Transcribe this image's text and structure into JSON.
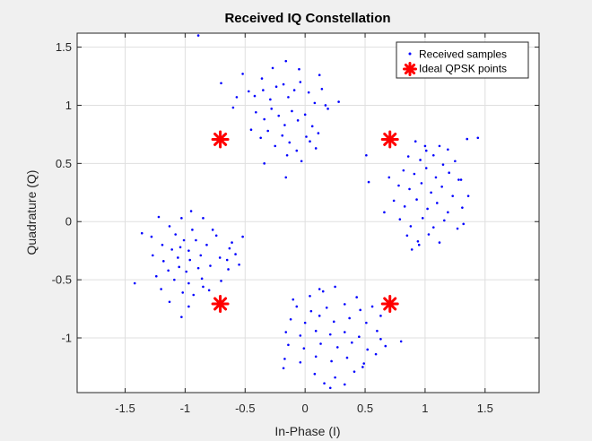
{
  "chart_data": {
    "type": "scatter",
    "title": "Received IQ Constellation",
    "xlabel": "In-Phase (I)",
    "ylabel": "Quadrature (Q)",
    "xlim": [
      -1.9,
      1.95
    ],
    "ylim": [
      -1.47,
      1.62
    ],
    "xticks": [
      -1.5,
      -1,
      -0.5,
      0,
      0.5,
      1,
      1.5
    ],
    "xtick_labels": [
      "-1.5",
      "-1",
      "-0.5",
      "0",
      "0.5",
      "1",
      "1.5"
    ],
    "yticks": [
      -1,
      -0.5,
      0,
      0.5,
      1,
      1.5
    ],
    "ytick_labels": [
      "-1",
      "-0.5",
      "0",
      "0.5",
      "1",
      "1.5"
    ],
    "grid": true,
    "legend_position": "top-right",
    "background": "#f0f0f0",
    "plot_background": "#ffffff",
    "series": [
      {
        "name": "Received samples",
        "color": "#0000ff",
        "marker": "dot",
        "points": [
          [
            -0.89,
            1.6
          ],
          [
            -0.16,
            1.38
          ],
          [
            -0.52,
            1.27
          ],
          [
            -0.27,
            1.32
          ],
          [
            0.12,
            1.26
          ],
          [
            -0.47,
            1.12
          ],
          [
            -0.42,
            1.08
          ],
          [
            -0.35,
            1.13
          ],
          [
            -0.29,
            1.05
          ],
          [
            -0.24,
            1.16
          ],
          [
            -0.18,
            1.18
          ],
          [
            -0.14,
            1.07
          ],
          [
            -0.09,
            1.13
          ],
          [
            -0.04,
            1.2
          ],
          [
            0.03,
            1.11
          ],
          [
            0.08,
            1.02
          ],
          [
            0.14,
            1.14
          ],
          [
            0.19,
            0.97
          ],
          [
            -0.41,
            0.94
          ],
          [
            -0.34,
            0.88
          ],
          [
            -0.28,
            0.97
          ],
          [
            -0.22,
            0.91
          ],
          [
            -0.17,
            0.83
          ],
          [
            -0.11,
            0.95
          ],
          [
            -0.06,
            0.87
          ],
          [
            0.0,
            0.92
          ],
          [
            0.06,
            0.82
          ],
          [
            0.11,
            0.76
          ],
          [
            -0.45,
            0.79
          ],
          [
            -0.37,
            0.72
          ],
          [
            -0.31,
            0.78
          ],
          [
            -0.25,
            0.65
          ],
          [
            -0.19,
            0.74
          ],
          [
            -0.13,
            0.68
          ],
          [
            -0.07,
            0.61
          ],
          [
            0.04,
            0.69
          ],
          [
            0.09,
            0.63
          ],
          [
            -0.6,
            0.98
          ],
          [
            -0.68,
            0.74
          ],
          [
            0.17,
            1.0
          ],
          [
            -0.36,
            1.23
          ],
          [
            -0.05,
            1.31
          ],
          [
            0.28,
            1.03
          ],
          [
            -0.57,
            1.07
          ],
          [
            0.01,
            0.73
          ],
          [
            -0.15,
            0.57
          ],
          [
            -0.34,
            0.5
          ],
          [
            -0.03,
            0.52
          ],
          [
            -0.16,
            0.38
          ],
          [
            -0.7,
            1.19
          ],
          [
            1.35,
            0.71
          ],
          [
            0.92,
            0.69
          ],
          [
            1.0,
            0.65
          ],
          [
            1.12,
            0.65
          ],
          [
            1.19,
            0.62
          ],
          [
            0.86,
            0.56
          ],
          [
            0.96,
            0.53
          ],
          [
            1.07,
            0.57
          ],
          [
            1.15,
            0.49
          ],
          [
            1.25,
            0.52
          ],
          [
            0.82,
            0.44
          ],
          [
            0.91,
            0.41
          ],
          [
            1.01,
            0.46
          ],
          [
            1.09,
            0.38
          ],
          [
            1.2,
            0.42
          ],
          [
            1.28,
            0.36
          ],
          [
            0.78,
            0.31
          ],
          [
            0.87,
            0.28
          ],
          [
            0.97,
            0.33
          ],
          [
            1.05,
            0.25
          ],
          [
            1.14,
            0.3
          ],
          [
            1.23,
            0.22
          ],
          [
            0.74,
            0.18
          ],
          [
            0.83,
            0.13
          ],
          [
            0.93,
            0.19
          ],
          [
            1.02,
            0.11
          ],
          [
            1.1,
            0.16
          ],
          [
            1.19,
            0.08
          ],
          [
            0.79,
            0.02
          ],
          [
            0.88,
            -0.04
          ],
          [
            0.98,
            0.03
          ],
          [
            1.07,
            -0.05
          ],
          [
            1.16,
            0.01
          ],
          [
            0.85,
            -0.12
          ],
          [
            0.94,
            -0.17
          ],
          [
            1.03,
            -0.11
          ],
          [
            1.12,
            -0.18
          ],
          [
            1.31,
            0.12
          ],
          [
            1.3,
            0.36
          ],
          [
            1.36,
            0.22
          ],
          [
            0.51,
            0.57
          ],
          [
            1.27,
            -0.06
          ],
          [
            0.95,
            -0.2
          ],
          [
            0.7,
            0.38
          ],
          [
            1.44,
            0.72
          ],
          [
            1.32,
            -0.02
          ],
          [
            0.53,
            0.34
          ],
          [
            0.89,
            -0.24
          ],
          [
            1.01,
            0.61
          ],
          [
            0.66,
            0.08
          ],
          [
            -1.22,
            0.04
          ],
          [
            -1.03,
            0.03
          ],
          [
            -0.85,
            0.03
          ],
          [
            -1.13,
            -0.04
          ],
          [
            -0.94,
            -0.07
          ],
          [
            -1.36,
            -0.1
          ],
          [
            -1.28,
            -0.13
          ],
          [
            -1.08,
            -0.11
          ],
          [
            -1.01,
            -0.16
          ],
          [
            -0.91,
            -0.16
          ],
          [
            -0.74,
            -0.12
          ],
          [
            -1.19,
            -0.2
          ],
          [
            -1.11,
            -0.24
          ],
          [
            -1.04,
            -0.22
          ],
          [
            -0.97,
            -0.25
          ],
          [
            -0.82,
            -0.2
          ],
          [
            -0.63,
            -0.23
          ],
          [
            -1.27,
            -0.29
          ],
          [
            -1.18,
            -0.34
          ],
          [
            -1.06,
            -0.31
          ],
          [
            -0.96,
            -0.33
          ],
          [
            -0.87,
            -0.29
          ],
          [
            -0.71,
            -0.31
          ],
          [
            -1.14,
            -0.42
          ],
          [
            -1.05,
            -0.39
          ],
          [
            -0.99,
            -0.43
          ],
          [
            -0.89,
            -0.4
          ],
          [
            -0.79,
            -0.38
          ],
          [
            -0.64,
            -0.41
          ],
          [
            -1.09,
            -0.5
          ],
          [
            -0.97,
            -0.53
          ],
          [
            -0.86,
            -0.49
          ],
          [
            -0.7,
            -0.51
          ],
          [
            -1.2,
            -0.58
          ],
          [
            -1.02,
            -0.61
          ],
          [
            -0.93,
            -0.63
          ],
          [
            -0.8,
            -0.59
          ],
          [
            -1.13,
            -0.69
          ],
          [
            -0.97,
            -0.73
          ],
          [
            -1.42,
            -0.53
          ],
          [
            -1.03,
            -0.82
          ],
          [
            -0.77,
            -0.07
          ],
          [
            -0.65,
            -0.33
          ],
          [
            -0.55,
            -0.37
          ],
          [
            -0.52,
            -0.13
          ],
          [
            -0.95,
            0.09
          ],
          [
            -0.61,
            -0.18
          ],
          [
            -1.24,
            -0.47
          ],
          [
            -0.85,
            -0.56
          ],
          [
            -0.58,
            -0.28
          ],
          [
            0.04,
            -0.64
          ],
          [
            0.15,
            -0.6
          ],
          [
            0.25,
            -0.56
          ],
          [
            0.43,
            -0.65
          ],
          [
            -0.07,
            -0.73
          ],
          [
            0.05,
            -0.77
          ],
          [
            0.18,
            -0.74
          ],
          [
            0.33,
            -0.71
          ],
          [
            0.46,
            -0.76
          ],
          [
            0.56,
            -0.73
          ],
          [
            -0.12,
            -0.84
          ],
          [
            0.0,
            -0.87
          ],
          [
            0.12,
            -0.81
          ],
          [
            0.24,
            -0.86
          ],
          [
            0.37,
            -0.83
          ],
          [
            0.51,
            -0.87
          ],
          [
            0.63,
            -0.81
          ],
          [
            -0.16,
            -0.95
          ],
          [
            -0.04,
            -0.98
          ],
          [
            0.09,
            -0.94
          ],
          [
            0.21,
            -0.97
          ],
          [
            0.33,
            -0.95
          ],
          [
            0.45,
            -0.99
          ],
          [
            0.6,
            -0.94
          ],
          [
            -0.14,
            -1.06
          ],
          [
            -0.01,
            -1.09
          ],
          [
            0.13,
            -1.05
          ],
          [
            0.27,
            -1.08
          ],
          [
            0.39,
            -1.04
          ],
          [
            0.52,
            -1.1
          ],
          [
            0.67,
            -1.07
          ],
          [
            -0.17,
            -1.18
          ],
          [
            -0.04,
            -1.21
          ],
          [
            0.09,
            -1.16
          ],
          [
            0.22,
            -1.2
          ],
          [
            0.35,
            -1.17
          ],
          [
            0.49,
            -1.22
          ],
          [
            0.08,
            -1.31
          ],
          [
            0.25,
            -1.34
          ],
          [
            0.41,
            -1.29
          ],
          [
            -0.18,
            -1.26
          ],
          [
            0.21,
            -1.43
          ],
          [
            0.8,
            -1.03
          ],
          [
            0.33,
            -1.4
          ],
          [
            0.12,
            -0.58
          ],
          [
            -0.1,
            -0.67
          ],
          [
            0.63,
            -1.01
          ],
          [
            0.48,
            -1.25
          ],
          [
            0.16,
            -1.39
          ],
          [
            0.59,
            -1.14
          ]
        ]
      },
      {
        "name": "Ideal QPSK points",
        "color": "#ff0000",
        "marker": "asterisk",
        "points": [
          [
            -0.707,
            0.707
          ],
          [
            0.707,
            0.707
          ],
          [
            -0.707,
            -0.707
          ],
          [
            0.707,
            -0.707
          ]
        ]
      }
    ]
  }
}
